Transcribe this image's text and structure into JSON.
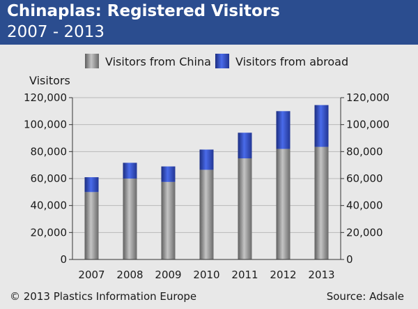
{
  "header": {
    "title": "Chinaplas: Registered Visitors",
    "subtitle": "2007 - 2013"
  },
  "footer": {
    "copyright": "© 2013 Plastics Information Europe",
    "source": "Source: Adsale"
  },
  "colors": {
    "header_bg": "#2b4d8f",
    "china_bar": "#9a9a9a",
    "abroad_bar": "#2f4fc8"
  },
  "chart_data": {
    "type": "bar",
    "stacked": true,
    "ylabel": "Visitors",
    "ylim": [
      0,
      120000
    ],
    "y_ticks": [
      0,
      20000,
      40000,
      60000,
      80000,
      100000,
      120000
    ],
    "y_tick_labels": [
      "0",
      "20,000",
      "40,000",
      "60,000",
      "80,000",
      "100,000",
      "120,000"
    ],
    "categories": [
      "2007",
      "2008",
      "2009",
      "2010",
      "2011",
      "2012",
      "2013"
    ],
    "series": [
      {
        "name": "Visitors from China",
        "values": [
          50000,
          60000,
          57500,
          66500,
          75000,
          82000,
          83500
        ]
      },
      {
        "name": "Visitors from abroad",
        "values": [
          11000,
          11700,
          11500,
          15000,
          19000,
          28000,
          31000
        ]
      }
    ],
    "grid": true,
    "legend": "top"
  }
}
